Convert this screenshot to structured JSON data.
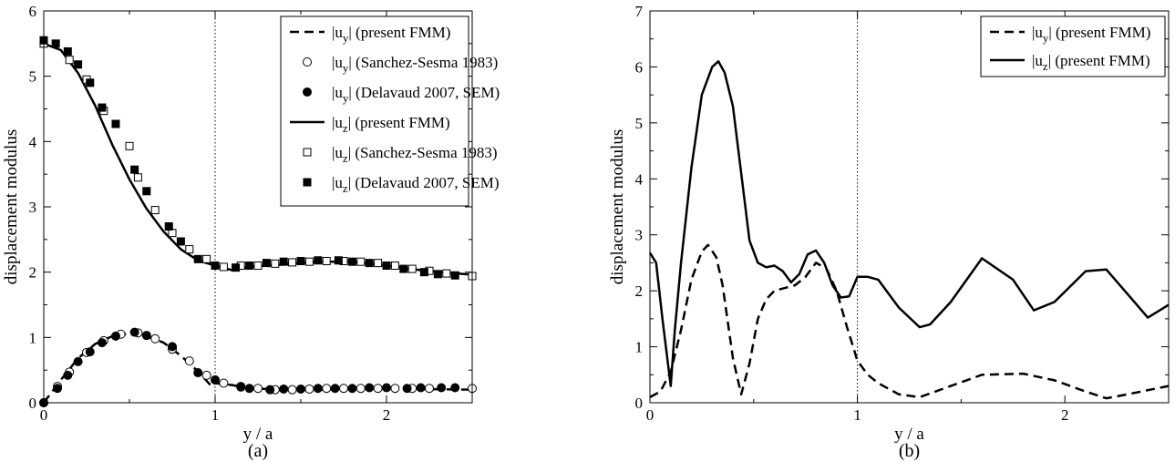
{
  "figure": {
    "panels": [
      "(a)",
      "(b)"
    ]
  },
  "chart_data": [
    {
      "type": "line",
      "panel_label": "(a)",
      "xlabel": "y / a",
      "ylabel": "displacement modulus",
      "xlim": [
        0,
        2.5
      ],
      "ylim": [
        0,
        6
      ],
      "x_ticks": [
        "0",
        "1",
        "2"
      ],
      "y_ticks": [
        "0",
        "1",
        "2",
        "3",
        "4",
        "5",
        "6"
      ],
      "vline": 1,
      "legend_position": "top-right",
      "series": [
        {
          "name": "|u_y| (present FMM)",
          "style": "dashed",
          "x": [
            0,
            0.1,
            0.2,
            0.3,
            0.4,
            0.5,
            0.6,
            0.7,
            0.8,
            0.9,
            0.98,
            1.0,
            1.1,
            1.2,
            1.4,
            1.6,
            1.8,
            2.0,
            2.2,
            2.5
          ],
          "y": [
            0,
            0.35,
            0.68,
            0.9,
            1.02,
            1.06,
            1.02,
            0.92,
            0.72,
            0.48,
            0.25,
            0.3,
            0.27,
            0.22,
            0.2,
            0.2,
            0.21,
            0.22,
            0.21,
            0.2
          ]
        },
        {
          "name": "|u_y| (Sanchez-Sesma 1983)",
          "style": "open-circle",
          "x": [
            0,
            0.08,
            0.15,
            0.25,
            0.35,
            0.45,
            0.55,
            0.65,
            0.75,
            0.85,
            0.95,
            1.05,
            1.15,
            1.25,
            1.35,
            1.45,
            1.55,
            1.65,
            1.75,
            1.85,
            1.95,
            2.05,
            2.15,
            2.25,
            2.5
          ],
          "y": [
            0,
            0.25,
            0.47,
            0.77,
            0.95,
            1.05,
            1.07,
            0.98,
            0.82,
            0.64,
            0.42,
            0.3,
            0.25,
            0.22,
            0.2,
            0.2,
            0.21,
            0.22,
            0.22,
            0.22,
            0.22,
            0.22,
            0.22,
            0.22,
            0.22
          ]
        },
        {
          "name": "|u_y| (Delavaud 2007, SEM)",
          "style": "filled-circle",
          "x": [
            0,
            0.08,
            0.14,
            0.2,
            0.27,
            0.34,
            0.42,
            0.53,
            0.6,
            0.75,
            0.9,
            1.0,
            1.15,
            1.2,
            1.32,
            1.4,
            1.5,
            1.6,
            1.7,
            1.8,
            1.9,
            2.0,
            2.12,
            2.2,
            2.32,
            2.4
          ],
          "y": [
            0,
            0.22,
            0.42,
            0.63,
            0.78,
            0.92,
            1.02,
            1.08,
            1.03,
            0.86,
            0.46,
            0.35,
            0.24,
            0.22,
            0.2,
            0.21,
            0.21,
            0.22,
            0.22,
            0.22,
            0.23,
            0.23,
            0.22,
            0.23,
            0.23,
            0.23
          ]
        },
        {
          "name": "|u_z| (present FMM)",
          "style": "solid",
          "x": [
            0,
            0.1,
            0.2,
            0.3,
            0.4,
            0.5,
            0.6,
            0.7,
            0.8,
            0.9,
            1.0,
            1.1,
            1.2,
            1.4,
            1.6,
            1.8,
            2.0,
            2.2,
            2.5
          ],
          "y": [
            5.5,
            5.4,
            5.05,
            4.55,
            3.95,
            3.42,
            2.97,
            2.62,
            2.35,
            2.18,
            2.1,
            2.03,
            2.08,
            2.12,
            2.16,
            2.16,
            2.1,
            2.03,
            1.96
          ]
        },
        {
          "name": "|u_z| (Sanchez-Sesma 1983)",
          "style": "open-square",
          "x": [
            0,
            0.15,
            0.25,
            0.35,
            0.5,
            0.55,
            0.65,
            0.75,
            0.85,
            0.95,
            1.05,
            1.15,
            1.25,
            1.35,
            1.45,
            1.55,
            1.65,
            1.75,
            1.85,
            1.95,
            2.05,
            2.15,
            2.25,
            2.35,
            2.5
          ],
          "y": [
            5.5,
            5.25,
            4.95,
            4.47,
            3.93,
            3.45,
            2.95,
            2.6,
            2.35,
            2.2,
            2.08,
            2.1,
            2.1,
            2.13,
            2.15,
            2.16,
            2.17,
            2.17,
            2.16,
            2.14,
            2.1,
            2.05,
            2.02,
            1.98,
            1.94
          ]
        },
        {
          "name": "|u_z| (Delavaud 2007, SEM)",
          "style": "filled-square",
          "x": [
            0,
            0.07,
            0.14,
            0.2,
            0.27,
            0.34,
            0.42,
            0.53,
            0.6,
            0.73,
            0.8,
            0.9,
            1.0,
            1.12,
            1.2,
            1.3,
            1.4,
            1.5,
            1.6,
            1.72,
            1.8,
            1.9,
            2.0,
            2.1,
            2.22,
            2.3,
            2.4
          ],
          "y": [
            5.55,
            5.5,
            5.38,
            5.18,
            4.9,
            4.52,
            4.27,
            3.57,
            3.24,
            2.7,
            2.47,
            2.2,
            2.1,
            2.07,
            2.1,
            2.14,
            2.16,
            2.17,
            2.18,
            2.18,
            2.16,
            2.14,
            2.1,
            2.05,
            2.0,
            1.97,
            1.95
          ]
        }
      ]
    },
    {
      "type": "line",
      "panel_label": "(b)",
      "xlabel": "y / a",
      "ylabel": "displacement modulus",
      "xlim": [
        0,
        2.5
      ],
      "ylim": [
        0,
        7
      ],
      "x_ticks": [
        "0",
        "1",
        "2"
      ],
      "y_ticks": [
        "0",
        "1",
        "2",
        "3",
        "4",
        "5",
        "6",
        "7"
      ],
      "vline": 1,
      "legend_position": "top-right",
      "series": [
        {
          "name": "|u_y|  (present FMM)",
          "style": "dashed",
          "x": [
            0,
            0.05,
            0.1,
            0.15,
            0.2,
            0.25,
            0.28,
            0.32,
            0.35,
            0.4,
            0.44,
            0.48,
            0.52,
            0.56,
            0.6,
            0.65,
            0.7,
            0.75,
            0.8,
            0.85,
            0.9,
            0.95,
            1.0,
            1.05,
            1.1,
            1.2,
            1.3,
            1.45,
            1.6,
            1.8,
            1.95,
            2.1,
            2.2,
            2.3,
            2.5
          ],
          "y": [
            0.1,
            0.2,
            0.55,
            1.3,
            2.2,
            2.7,
            2.82,
            2.6,
            2.1,
            0.8,
            0.15,
            0.7,
            1.5,
            1.85,
            2.0,
            2.05,
            2.1,
            2.25,
            2.5,
            2.4,
            2.0,
            1.35,
            0.75,
            0.5,
            0.35,
            0.15,
            0.1,
            0.3,
            0.5,
            0.52,
            0.4,
            0.2,
            0.08,
            0.15,
            0.3
          ]
        },
        {
          "name": "|u_z|  (present FMM)",
          "style": "solid",
          "x": [
            0,
            0.03,
            0.06,
            0.1,
            0.12,
            0.15,
            0.2,
            0.25,
            0.3,
            0.33,
            0.36,
            0.4,
            0.45,
            0.48,
            0.52,
            0.56,
            0.6,
            0.64,
            0.68,
            0.72,
            0.76,
            0.8,
            0.84,
            0.88,
            0.92,
            0.96,
            1.0,
            1.05,
            1.1,
            1.2,
            1.3,
            1.35,
            1.45,
            1.6,
            1.75,
            1.85,
            1.95,
            2.1,
            2.2,
            2.3,
            2.4,
            2.5
          ],
          "y": [
            2.68,
            2.5,
            1.5,
            0.3,
            1.3,
            2.5,
            4.2,
            5.5,
            6.0,
            6.1,
            5.9,
            5.3,
            3.8,
            2.9,
            2.5,
            2.42,
            2.45,
            2.35,
            2.15,
            2.3,
            2.65,
            2.72,
            2.5,
            2.1,
            1.88,
            1.9,
            2.25,
            2.25,
            2.2,
            1.7,
            1.35,
            1.4,
            1.8,
            2.58,
            2.2,
            1.65,
            1.8,
            2.35,
            2.38,
            1.95,
            1.52,
            1.75
          ]
        }
      ]
    }
  ]
}
